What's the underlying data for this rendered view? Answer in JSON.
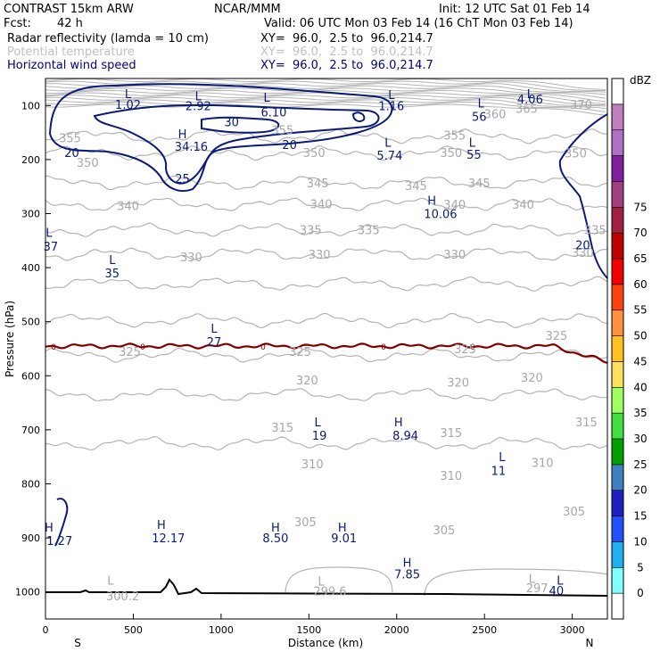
{
  "header": {
    "model": "CONTRAST 15km ARW",
    "org": "NCAR/MMM",
    "init": "Init: 12 UTC Sat 01 Feb 14",
    "fcst_label": "Fcst:",
    "fcst_value": "42 h",
    "valid": "Valid: 06 UTC Mon 03 Feb 14 (16 ChT Mon 03 Feb 14)"
  },
  "fields": [
    {
      "name": "Radar reflectivity (lamda = 10 cm)",
      "xy": "XY=  96.0,  2.5 to  96.0,214.7",
      "color": "#000000"
    },
    {
      "name": "Potential temperature",
      "xy": "XY=  96.0,  2.5 to  96.0,214.7",
      "color": "#c0c0c0"
    },
    {
      "name": "Horizontal wind speed",
      "xy": "XY=  96.0,  2.5 to  96.0,214.7",
      "color": "#000080"
    }
  ],
  "chart_data": {
    "type": "cross-section contour",
    "xlabel": "Distance (km)",
    "ylabel": "Pressure (hPa)",
    "xlim": [
      0,
      3200
    ],
    "ylim": [
      1050,
      50
    ],
    "xticks": [
      0,
      500,
      1000,
      1500,
      2000,
      2500,
      3000
    ],
    "yticks": [
      100,
      200,
      300,
      400,
      500,
      600,
      700,
      800,
      900,
      1000
    ],
    "x_end_labels": {
      "left": "S",
      "right": "N"
    },
    "theta_contours": [
      {
        "value": "355",
        "p": 157
      },
      {
        "value": "350",
        "p": 188
      },
      {
        "value": "345",
        "p": 243
      },
      {
        "value": "340",
        "p": 283
      },
      {
        "value": "335",
        "p": 330
      },
      {
        "value": "330",
        "p": 375
      },
      {
        "value": "325",
        "p": 430
      },
      {
        "value": "320",
        "p": 498
      },
      {
        "value": "315",
        "p": 562
      },
      {
        "value": "310",
        "p": 635
      },
      {
        "value": "305",
        "p": 725
      }
    ],
    "theta_labels": [
      {
        "text": "360",
        "x": 2560,
        "p": 115
      },
      {
        "text": "365",
        "x": 2740,
        "p": 105
      },
      {
        "text": "370",
        "x": 3050,
        "p": 98
      },
      {
        "text": "355",
        "x": 140,
        "p": 160
      },
      {
        "text": "355",
        "x": 1350,
        "p": 145
      },
      {
        "text": "355",
        "x": 2330,
        "p": 155
      },
      {
        "text": "350",
        "x": 240,
        "p": 205
      },
      {
        "text": "350",
        "x": 1530,
        "p": 187
      },
      {
        "text": "350",
        "x": 2310,
        "p": 187
      },
      {
        "text": "350",
        "x": 3020,
        "p": 188
      },
      {
        "text": "345",
        "x": 1550,
        "p": 243
      },
      {
        "text": "345",
        "x": 2470,
        "p": 243
      },
      {
        "text": "345",
        "x": 2110,
        "p": 248
      },
      {
        "text": "340",
        "x": 470,
        "p": 285
      },
      {
        "text": "340",
        "x": 1570,
        "p": 282
      },
      {
        "text": "340",
        "x": 2330,
        "p": 283
      },
      {
        "text": "340",
        "x": 2720,
        "p": 283
      },
      {
        "text": "335",
        "x": 1510,
        "p": 330
      },
      {
        "text": "335",
        "x": 1840,
        "p": 330
      },
      {
        "text": "335",
        "x": 3130,
        "p": 330
      },
      {
        "text": "330",
        "x": 830,
        "p": 380
      },
      {
        "text": "330",
        "x": 1560,
        "p": 375
      },
      {
        "text": "330",
        "x": 2330,
        "p": 375
      },
      {
        "text": "330",
        "x": 3060,
        "p": 372
      },
      {
        "text": "325",
        "x": 480,
        "p": 555
      },
      {
        "text": "325",
        "x": 1450,
        "p": 555
      },
      {
        "text": "325",
        "x": 2390,
        "p": 550
      },
      {
        "text": "325",
        "x": 2910,
        "p": 525
      },
      {
        "text": "320",
        "x": 1490,
        "p": 608
      },
      {
        "text": "320",
        "x": 2350,
        "p": 612
      },
      {
        "text": "320",
        "x": 2770,
        "p": 603
      },
      {
        "text": "315",
        "x": 1350,
        "p": 695
      },
      {
        "text": "315",
        "x": 2310,
        "p": 705
      },
      {
        "text": "315",
        "x": 3080,
        "p": 685
      },
      {
        "text": "310",
        "x": 1520,
        "p": 763
      },
      {
        "text": "310",
        "x": 2310,
        "p": 784
      },
      {
        "text": "310",
        "x": 2830,
        "p": 760
      },
      {
        "text": "305",
        "x": 1480,
        "p": 870
      },
      {
        "text": "305",
        "x": 2270,
        "p": 885
      },
      {
        "text": "305",
        "x": 3010,
        "p": 850
      }
    ],
    "theta_extrema": [
      {
        "text": "L",
        "x": 370,
        "p": 978
      },
      {
        "text": "300.2",
        "x": 440,
        "p": 1007
      },
      {
        "text": "L",
        "x": 1570,
        "p": 980
      },
      {
        "text": "299.6",
        "x": 1620,
        "p": 998
      },
      {
        "text": "L",
        "x": 2770,
        "p": 975
      },
      {
        "text": "297.",
        "x": 2810,
        "p": 992
      }
    ],
    "wind_isotachs": {
      "color": "#0a1a78",
      "levels": [
        20,
        25,
        30
      ]
    },
    "wind_labels": [
      {
        "text": "20",
        "x": 1390,
        "p": 172
      },
      {
        "text": "30",
        "x": 1060,
        "p": 130
      },
      {
        "text": "25",
        "x": 780,
        "p": 235
      },
      {
        "text": "20",
        "x": 150,
        "p": 187
      },
      {
        "text": "20",
        "x": 3060,
        "p": 358
      }
    ],
    "wind_extrema": [
      {
        "text": "L",
        "x": 470,
        "p": 78
      },
      {
        "text": "1.02",
        "x": 470,
        "p": 98
      },
      {
        "text": "L",
        "x": 870,
        "p": 82
      },
      {
        "text": "2.92",
        "x": 870,
        "p": 100
      },
      {
        "text": "L",
        "x": 1260,
        "p": 85
      },
      {
        "text": "6.10",
        "x": 1300,
        "p": 112
      },
      {
        "text": "L",
        "x": 1970,
        "p": 80
      },
      {
        "text": "1.16",
        "x": 1970,
        "p": 100
      },
      {
        "text": "L",
        "x": 2480,
        "p": 95
      },
      {
        "text": "56",
        "x": 2470,
        "p": 120
      },
      {
        "text": "L",
        "x": 2760,
        "p": 78
      },
      {
        "text": "4.06",
        "x": 2760,
        "p": 88
      },
      {
        "text": "H",
        "x": 780,
        "p": 152
      },
      {
        "text": "34.16",
        "x": 830,
        "p": 175
      },
      {
        "text": "L",
        "x": 1950,
        "p": 168
      },
      {
        "text": "5.74",
        "x": 1960,
        "p": 192
      },
      {
        "text": "L",
        "x": 2430,
        "p": 168
      },
      {
        "text": "55",
        "x": 2440,
        "p": 190
      },
      {
        "text": "H",
        "x": 2200,
        "p": 275
      },
      {
        "text": "10.06",
        "x": 2250,
        "p": 300
      },
      {
        "text": "L",
        "x": 20,
        "p": 335
      },
      {
        "text": "37",
        "x": 30,
        "p": 360
      },
      {
        "text": "L",
        "x": 380,
        "p": 385
      },
      {
        "text": "35",
        "x": 380,
        "p": 410
      },
      {
        "text": "L",
        "x": 960,
        "p": 512
      },
      {
        "text": "27",
        "x": 960,
        "p": 537
      },
      {
        "text": "L",
        "x": 1550,
        "p": 685
      },
      {
        "text": "19",
        "x": 1560,
        "p": 710
      },
      {
        "text": "H",
        "x": 2010,
        "p": 685
      },
      {
        "text": "8.94",
        "x": 2050,
        "p": 710
      },
      {
        "text": "L",
        "x": 2600,
        "p": 750
      },
      {
        "text": "11",
        "x": 2580,
        "p": 775
      },
      {
        "text": "H",
        "x": 20,
        "p": 880
      },
      {
        "text": "1.27",
        "x": 80,
        "p": 905
      },
      {
        "text": "H",
        "x": 660,
        "p": 875
      },
      {
        "text": "12.17",
        "x": 700,
        "p": 900
      },
      {
        "text": "H",
        "x": 1310,
        "p": 880
      },
      {
        "text": "8.50",
        "x": 1310,
        "p": 900
      },
      {
        "text": "H",
        "x": 1690,
        "p": 880
      },
      {
        "text": "9.01",
        "x": 1700,
        "p": 900
      },
      {
        "text": "H",
        "x": 2060,
        "p": 945
      },
      {
        "text": "7.85",
        "x": 2060,
        "p": 967
      },
      {
        "text": "L",
        "x": 2930,
        "p": 978
      },
      {
        "text": "40",
        "x": 2910,
        "p": 997
      }
    ],
    "zero_dbz_line": {
      "label": "0",
      "color": "#800000",
      "p_mean": 545
    },
    "colorbar": {
      "unit": "dBZ",
      "levels": [
        "0",
        "5",
        "10",
        "15",
        "20",
        "25",
        "30",
        "35",
        "40",
        "45",
        "50",
        "55",
        "60",
        "65",
        "70",
        "75"
      ],
      "colors": [
        "#ffffff",
        "#80ffff",
        "#20b0f0",
        "#2050ff",
        "#2020c0",
        "#4080c0",
        "#00a000",
        "#40e040",
        "#a0ff60",
        "#ffe060",
        "#ffc020",
        "#ff9040",
        "#ff4010",
        "#f00000",
        "#c00000",
        "#a02040",
        "#a04080",
        "#8020a0",
        "#b070c0",
        "#c080c0",
        "#ffffff"
      ]
    }
  }
}
